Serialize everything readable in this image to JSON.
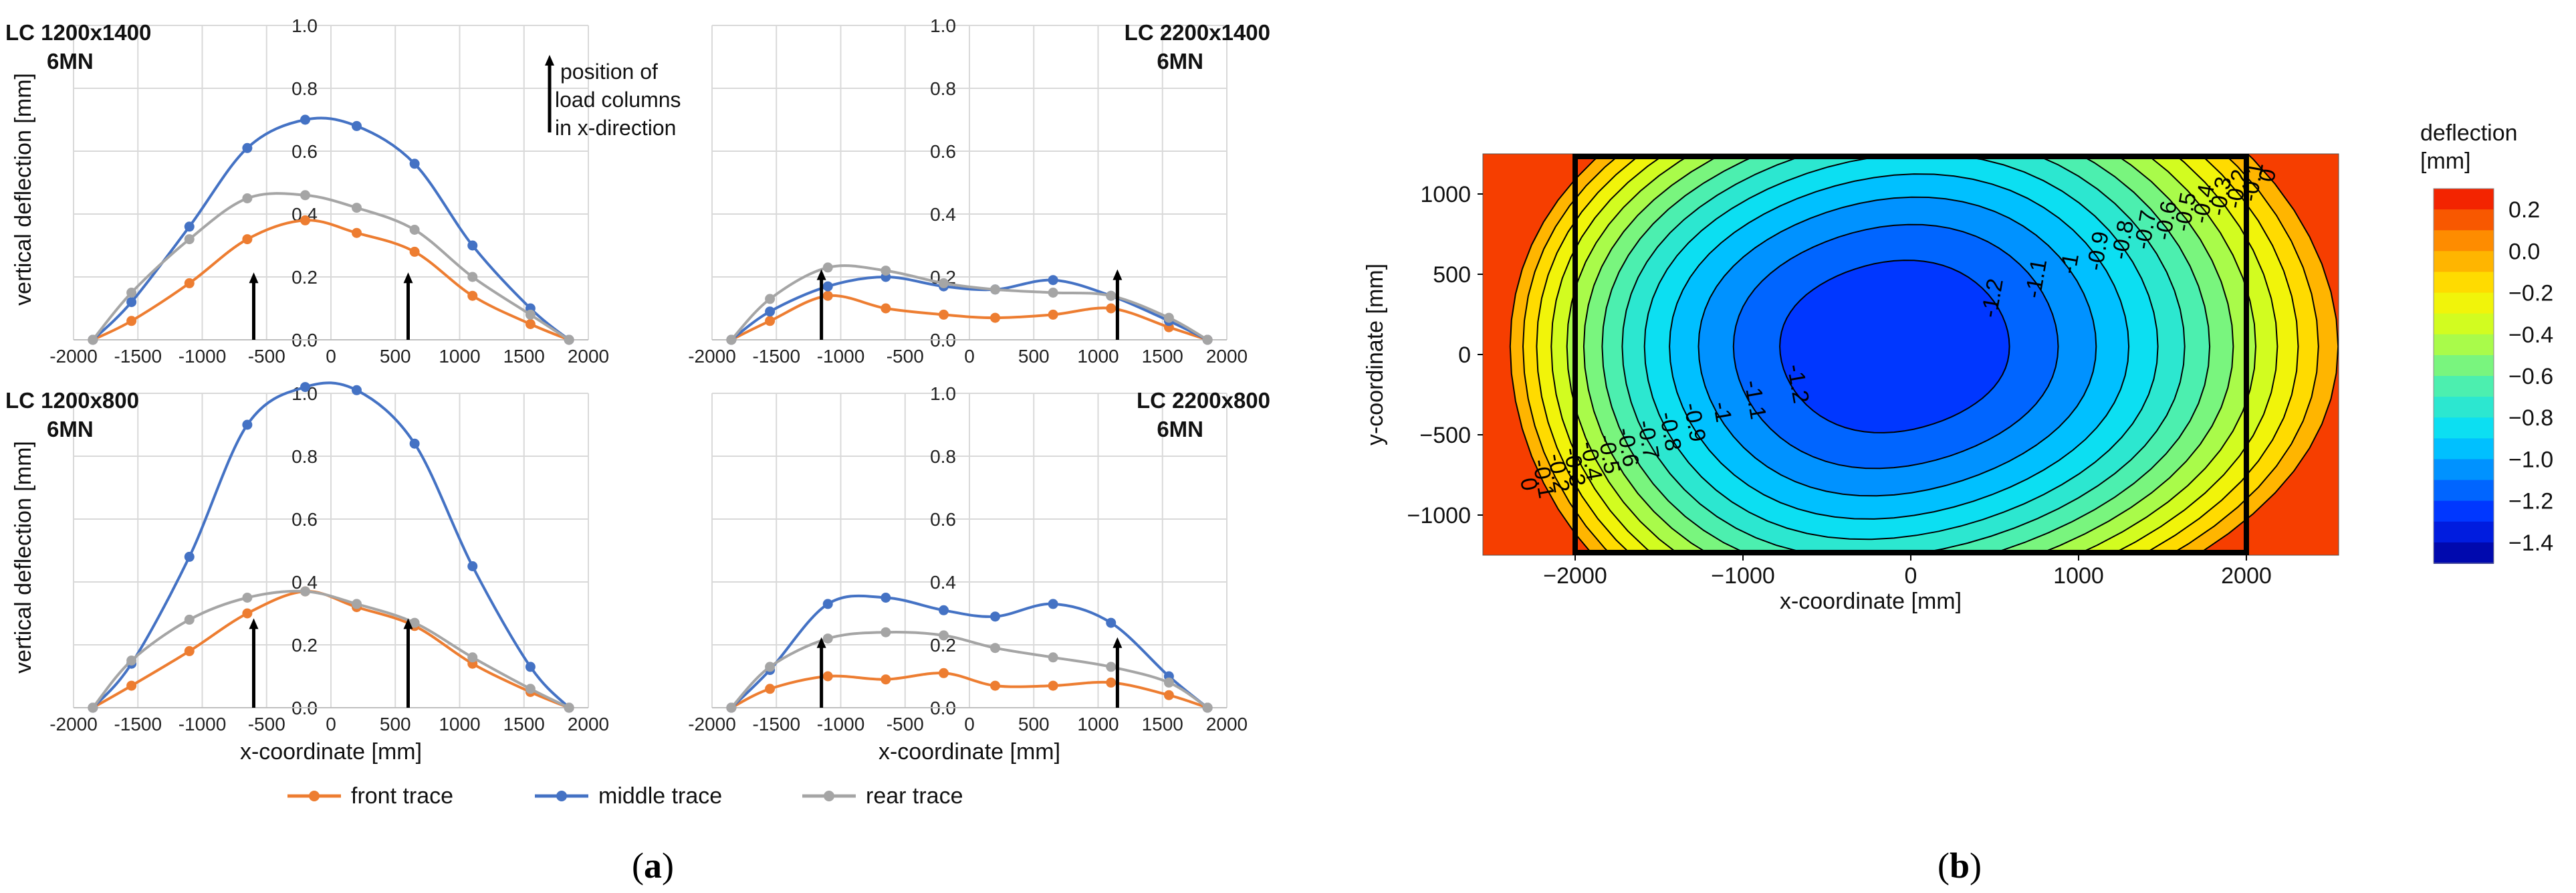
{
  "captions": {
    "a_open": "(",
    "a_letter": "a",
    "a_close": ")",
    "b_open": "(",
    "b_letter": "b",
    "b_close": ")"
  },
  "annotation": {
    "line1": "position of",
    "line2": "load columns",
    "line3": "in x-direction"
  },
  "legend": [
    {
      "name": "front trace",
      "color": "#ED7D31"
    },
    {
      "name": "middle trace",
      "color": "#4472C4"
    },
    {
      "name": "rear trace",
      "color": "#A5A5A5"
    }
  ],
  "chart_data": [
    {
      "type": "line",
      "panel": "a",
      "title_line1": "LC 1200x1400",
      "title_line2": "6MN",
      "xlabel": "",
      "ylabel": "vertical deflection [mm]",
      "xlim": [
        -2000,
        2000
      ],
      "xticks": [
        -2000,
        -1500,
        -1000,
        -500,
        0,
        500,
        1000,
        1500,
        2000
      ],
      "ylim": [
        0,
        1.0
      ],
      "yticks": [
        "0.0",
        "0.2",
        "0.4",
        "0.6",
        "0.8",
        "1.0"
      ],
      "load_columns": [
        -600,
        600
      ],
      "load_arrow_top": 0.21,
      "series": [
        {
          "name": "front trace",
          "color": "#ED7D31",
          "x": [
            -1850,
            -1550,
            -1100,
            -650,
            -200,
            200,
            650,
            1100,
            1550,
            1850
          ],
          "y": [
            0.0,
            0.06,
            0.18,
            0.32,
            0.38,
            0.34,
            0.28,
            0.14,
            0.05,
            0.0
          ]
        },
        {
          "name": "middle trace",
          "color": "#4472C4",
          "x": [
            -1850,
            -1550,
            -1100,
            -650,
            -200,
            200,
            650,
            1100,
            1550,
            1850
          ],
          "y": [
            0.0,
            0.12,
            0.36,
            0.61,
            0.7,
            0.68,
            0.56,
            0.3,
            0.1,
            0.0
          ]
        },
        {
          "name": "rear trace",
          "color": "#A5A5A5",
          "x": [
            -1850,
            -1550,
            -1100,
            -650,
            -200,
            200,
            650,
            1100,
            1550,
            1850
          ],
          "y": [
            0.0,
            0.15,
            0.32,
            0.45,
            0.46,
            0.42,
            0.35,
            0.2,
            0.08,
            0.0
          ]
        }
      ]
    },
    {
      "type": "line",
      "panel": "a",
      "title_line1": "LC 2200x1400",
      "title_line2": "6MN",
      "xlabel": "",
      "ylabel": "",
      "xlim": [
        -2000,
        2000
      ],
      "xticks": [
        -2000,
        -1500,
        -1000,
        -500,
        0,
        500,
        1000,
        1500,
        2000
      ],
      "ylim": [
        0,
        1.0
      ],
      "yticks": [
        "0.0",
        "0.2",
        "0.4",
        "0.6",
        "0.8",
        "1.0"
      ],
      "load_columns": [
        -1150,
        1150
      ],
      "load_arrow_top": 0.22,
      "series": [
        {
          "name": "front trace",
          "color": "#ED7D31",
          "x": [
            -1850,
            -1550,
            -1100,
            -650,
            -200,
            200,
            650,
            1100,
            1550,
            1850
          ],
          "y": [
            0.0,
            0.06,
            0.14,
            0.1,
            0.08,
            0.07,
            0.08,
            0.1,
            0.04,
            0.0
          ]
        },
        {
          "name": "middle trace",
          "color": "#4472C4",
          "x": [
            -1850,
            -1550,
            -1100,
            -650,
            -200,
            200,
            650,
            1100,
            1550,
            1850
          ],
          "y": [
            0.0,
            0.09,
            0.17,
            0.2,
            0.17,
            0.16,
            0.19,
            0.14,
            0.06,
            0.0
          ]
        },
        {
          "name": "rear trace",
          "color": "#A5A5A5",
          "x": [
            -1850,
            -1550,
            -1100,
            -650,
            -200,
            200,
            650,
            1100,
            1550,
            1850
          ],
          "y": [
            0.0,
            0.13,
            0.23,
            0.22,
            0.18,
            0.16,
            0.15,
            0.14,
            0.07,
            0.0
          ]
        }
      ]
    },
    {
      "type": "line",
      "panel": "a",
      "title_line1": "LC 1200x800",
      "title_line2": "6MN",
      "xlabel": "x-coordinate [mm]",
      "ylabel": "vertical deflection [mm]",
      "xlim": [
        -2000,
        2000
      ],
      "xticks": [
        -2000,
        -1500,
        -1000,
        -500,
        0,
        500,
        1000,
        1500,
        2000
      ],
      "ylim": [
        0,
        1.0
      ],
      "yticks": [
        "0.0",
        "0.2",
        "0.4",
        "0.6",
        "0.8",
        "1.0"
      ],
      "load_columns": [
        -600,
        600
      ],
      "load_arrow_top": 0.28,
      "series": [
        {
          "name": "front trace",
          "color": "#ED7D31",
          "x": [
            -1850,
            -1550,
            -1100,
            -650,
            -200,
            200,
            650,
            1100,
            1550,
            1850
          ],
          "y": [
            0.0,
            0.07,
            0.18,
            0.3,
            0.37,
            0.32,
            0.26,
            0.14,
            0.05,
            0.0
          ]
        },
        {
          "name": "middle trace",
          "color": "#4472C4",
          "x": [
            -1850,
            -1550,
            -1100,
            -650,
            -200,
            200,
            650,
            1100,
            1550,
            1850
          ],
          "y": [
            0.0,
            0.14,
            0.48,
            0.9,
            1.02,
            1.01,
            0.84,
            0.45,
            0.13,
            0.0
          ]
        },
        {
          "name": "rear trace",
          "color": "#A5A5A5",
          "x": [
            -1850,
            -1550,
            -1100,
            -650,
            -200,
            200,
            650,
            1100,
            1550,
            1850
          ],
          "y": [
            0.0,
            0.15,
            0.28,
            0.35,
            0.37,
            0.33,
            0.27,
            0.16,
            0.06,
            0.0
          ]
        }
      ]
    },
    {
      "type": "line",
      "panel": "a",
      "title_line1": "LC 2200x800",
      "title_line2": "6MN",
      "xlabel": "x-coordinate [mm]",
      "ylabel": "",
      "xlim": [
        -2000,
        2000
      ],
      "xticks": [
        -2000,
        -1500,
        -1000,
        -500,
        0,
        500,
        1000,
        1500,
        2000
      ],
      "ylim": [
        0,
        1.0
      ],
      "yticks": [
        "0.0",
        "0.2",
        "0.4",
        "0.6",
        "0.8",
        "1.0"
      ],
      "load_columns": [
        -1150,
        1150
      ],
      "load_arrow_top": 0.22,
      "series": [
        {
          "name": "front trace",
          "color": "#ED7D31",
          "x": [
            -1850,
            -1550,
            -1100,
            -650,
            -200,
            200,
            650,
            1100,
            1550,
            1850
          ],
          "y": [
            0.0,
            0.06,
            0.1,
            0.09,
            0.11,
            0.07,
            0.07,
            0.08,
            0.04,
            0.0
          ]
        },
        {
          "name": "middle trace",
          "color": "#4472C4",
          "x": [
            -1850,
            -1550,
            -1100,
            -650,
            -200,
            200,
            650,
            1100,
            1550,
            1850
          ],
          "y": [
            0.0,
            0.12,
            0.33,
            0.35,
            0.31,
            0.29,
            0.33,
            0.27,
            0.1,
            0.0
          ]
        },
        {
          "name": "rear trace",
          "color": "#A5A5A5",
          "x": [
            -1850,
            -1550,
            -1100,
            -650,
            -200,
            200,
            650,
            1100,
            1550,
            1850
          ],
          "y": [
            0.0,
            0.13,
            0.22,
            0.24,
            0.23,
            0.19,
            0.16,
            0.13,
            0.08,
            0.0
          ]
        }
      ]
    },
    {
      "type": "contour",
      "panel": "b",
      "xlabel": "x-coordinate [mm]",
      "ylabel": "y-coordinate [mm]",
      "xlim": [
        -2550,
        2550
      ],
      "ylim": [
        -1250,
        1250
      ],
      "xticks": [
        "−2000",
        "−1000",
        "0",
        "1000",
        "2000"
      ],
      "xtick_values": [
        -2000,
        -1000,
        0,
        1000,
        2000
      ],
      "yticks": [
        "1000",
        "500",
        "0",
        "−500",
        "−1000"
      ],
      "ytick_values": [
        1000,
        500,
        0,
        -500,
        -1000
      ],
      "center": [
        -100,
        50
      ],
      "min_deflection": -1.3,
      "frame_rect_x": [
        -2000,
        2000
      ],
      "frame_rect_y": [
        -1250,
        1250
      ],
      "colorbar_title_line1": "deflection",
      "colorbar_title_line2": "[mm]",
      "colorbar_ticks": [
        "0.2",
        "0.0",
        "−0.2",
        "−0.4",
        "−0.6",
        "−0.8",
        "−1.0",
        "−1.2",
        "−1.4"
      ],
      "colorbar_range": [
        -1.5,
        0.3
      ],
      "levels": [
        -1.2,
        -1.1,
        -1.0,
        -0.9,
        -0.8,
        -0.7,
        -0.6,
        -0.5,
        -0.4,
        -0.3,
        -0.2,
        -0.1,
        0.0
      ],
      "contour_labels": [
        "0",
        "-0.1",
        "-0.2",
        "-0.3",
        "-0.4",
        "-0.5",
        "-0.6",
        "-0.7",
        "-0.8",
        "-0.9",
        "-1",
        "-1.1",
        "-1.2"
      ]
    }
  ]
}
